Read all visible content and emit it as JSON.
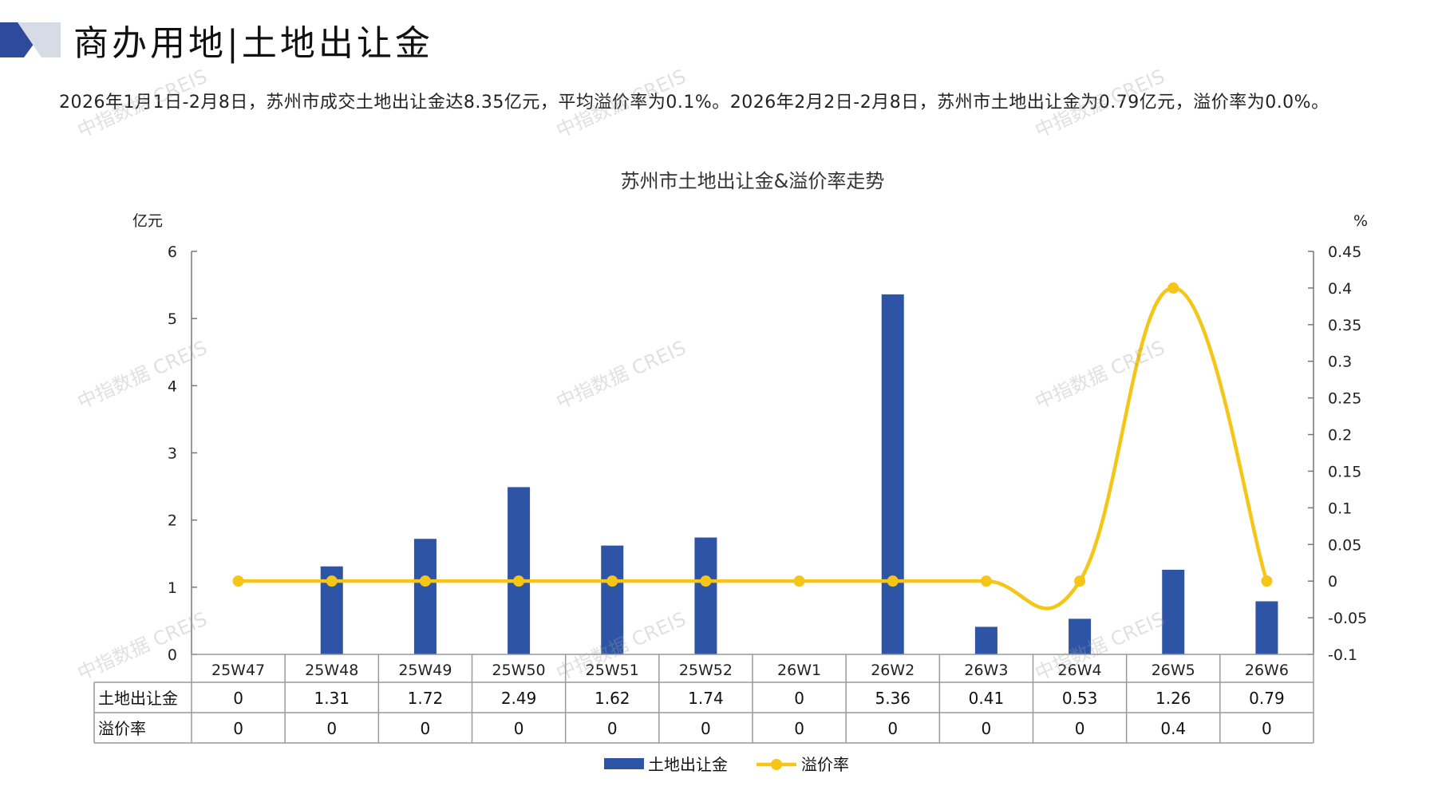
{
  "page": {
    "title": "商办用地|土地出让金",
    "summary": "2026年1月1日-2月8日，苏州市成交土地出让金达8.35亿元，平均溢价率为0.1%。2026年2月2日-2月8日，苏州市土地出让金为0.79亿元，溢价率为0.0%。",
    "watermark": "中指数据 CREIS"
  },
  "colors": {
    "bar": "#2e55a5",
    "line": "#f5c518",
    "logo_dark": "#2e4a9a",
    "logo_light": "#d7dbe6"
  },
  "chart_data": {
    "type": "bar",
    "title": "苏州市土地出让金&溢价率走势",
    "left_unit": "亿元",
    "right_unit": "%",
    "categories": [
      "25W47",
      "25W48",
      "25W49",
      "25W50",
      "25W51",
      "25W52",
      "26W1",
      "26W2",
      "26W3",
      "26W4",
      "26W5",
      "26W6"
    ],
    "left_axis": {
      "min": 0,
      "max": 6,
      "ticks": [
        "0",
        "1",
        "2",
        "3",
        "4",
        "5",
        "6"
      ]
    },
    "right_axis": {
      "min": -0.1,
      "max": 0.45,
      "ticks": [
        "-0.1",
        "-0.05",
        "0",
        "0.05",
        "0.1",
        "0.15",
        "0.2",
        "0.25",
        "0.3",
        "0.35",
        "0.4",
        "0.45"
      ]
    },
    "series": [
      {
        "name": "土地出让金",
        "type": "bar",
        "axis": "left",
        "values": [
          0,
          1.31,
          1.72,
          2.49,
          1.62,
          1.74,
          0,
          5.36,
          0.41,
          0.53,
          1.26,
          0.79
        ],
        "labels": [
          "0",
          "1.31",
          "1.72",
          "2.49",
          "1.62",
          "1.74",
          "0",
          "5.36",
          "0.41",
          "0.53",
          "1.26",
          "0.79"
        ]
      },
      {
        "name": "溢价率",
        "type": "line",
        "axis": "right",
        "values": [
          0,
          0,
          0,
          0,
          0,
          0,
          0,
          0,
          0,
          0,
          0.4,
          0
        ],
        "labels": [
          "0",
          "0",
          "0",
          "0",
          "0",
          "0",
          "0",
          "0",
          "0",
          "0",
          "0.4",
          "0"
        ]
      }
    ],
    "legend": "bottom-center",
    "grid": false
  }
}
